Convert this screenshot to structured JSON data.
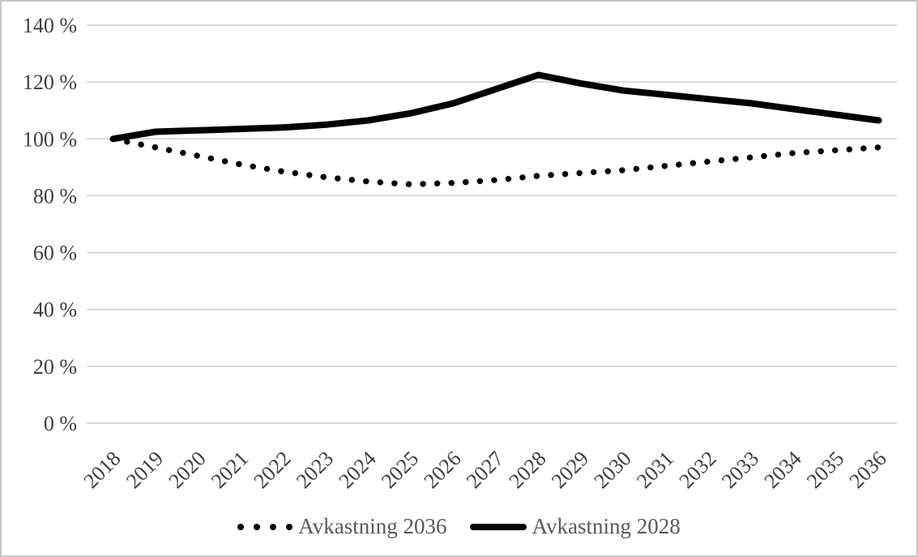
{
  "chart_data": {
    "type": "line",
    "title": "",
    "xlabel": "",
    "ylabel": "",
    "x_categories": [
      "2018",
      "2019",
      "2020",
      "2021",
      "2022",
      "2023",
      "2024",
      "2025",
      "2026",
      "2027",
      "2028",
      "2029",
      "2030",
      "2031",
      "2032",
      "2033",
      "2034",
      "2035",
      "2036"
    ],
    "series": [
      {
        "name": "Avkastning 2036",
        "line_style": "dotted",
        "color": "#000000",
        "values": [
          100,
          97,
          94,
          91,
          88.5,
          86.5,
          85,
          84,
          84.5,
          85.5,
          87,
          88,
          89,
          90.5,
          92,
          93.5,
          95,
          96,
          97
        ]
      },
      {
        "name": "Avkastning 2028",
        "line_style": "solid",
        "color": "#000000",
        "values": [
          100,
          102.5,
          103,
          103.5,
          104,
          105,
          106.5,
          109,
          112.5,
          117.5,
          122.5,
          119.5,
          117,
          115.5,
          114,
          112.5,
          110.5,
          108.5,
          106.5
        ]
      }
    ],
    "ylim": [
      0,
      140
    ],
    "ytick_interval": 20,
    "ytick_suffix": " %",
    "ytick_labels": [
      "0 %",
      "20 %",
      "40 %",
      "60 %",
      "80 %",
      "100 %",
      "120 %",
      "140 %"
    ],
    "grid": "horizontal",
    "legend_position": "bottom",
    "colors": {
      "gridline": "#d9d9d9",
      "axis_text": "#3f3f3f",
      "legend_text": "#595959",
      "series": "#000000",
      "border": "#c6c6c6",
      "background": "#ffffff"
    }
  }
}
